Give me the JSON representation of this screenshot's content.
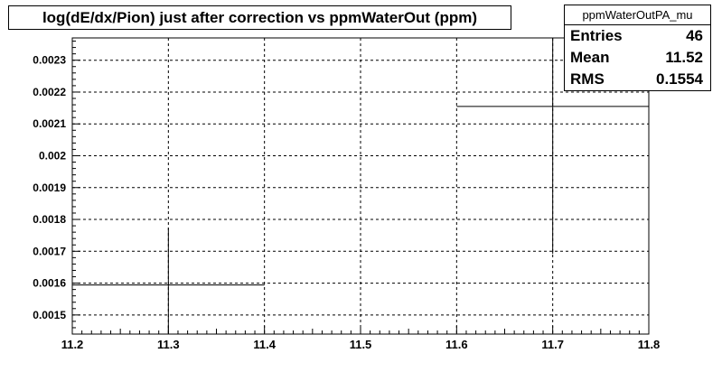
{
  "chart_data": {
    "type": "line",
    "title": "log(dE/dx/Pion) just after correction vs ppmWaterOut (ppm)",
    "xlabel": "",
    "ylabel": "",
    "xlim": [
      11.2,
      11.8
    ],
    "ylim": [
      0.00144,
      0.00237
    ],
    "x_ticks": [
      11.2,
      11.3,
      11.4,
      11.5,
      11.6,
      11.7,
      11.8
    ],
    "x_tick_labels": [
      "11.2",
      "11.3",
      "11.4",
      "11.5",
      "11.6",
      "11.7",
      "11.8"
    ],
    "y_ticks": [
      0.0015,
      0.0016,
      0.0017,
      0.0018,
      0.0019,
      0.002,
      0.0021,
      0.0022,
      0.0023
    ],
    "y_tick_labels": [
      "0.0015",
      "0.0016",
      "0.0017",
      "0.0018",
      "0.0019",
      "0.002",
      "0.0021",
      "0.0022",
      "0.0023"
    ],
    "grid": true,
    "points": [
      {
        "xlow": 11.2,
        "xhigh": 11.4,
        "x": 11.3,
        "y": 0.001594,
        "ylow": 0.00144,
        "yhigh": 0.001774
      },
      {
        "xlow": 11.6,
        "xhigh": 11.8,
        "x": 11.7,
        "y": 0.002155,
        "ylow": 0.001692,
        "yhigh": 0.00237
      }
    ]
  },
  "stats": {
    "name": "ppmWaterOutPA_mu",
    "entries_label": "Entries",
    "entries_value": "46",
    "mean_label": "Mean",
    "mean_value": "11.52",
    "rms_label": "RMS",
    "rms_value": "0.1554"
  }
}
